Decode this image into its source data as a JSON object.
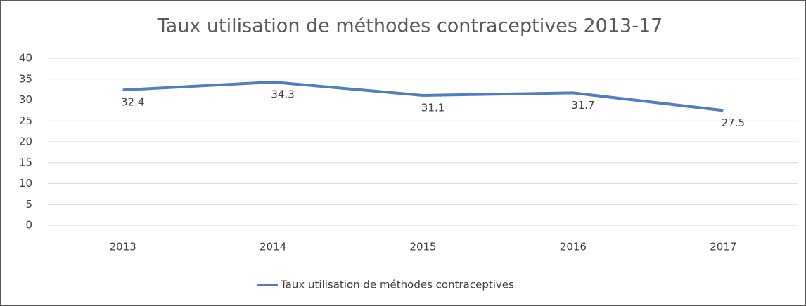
{
  "chart_data": {
    "type": "line",
    "title": "Taux utilisation de méthodes contraceptives 2013-17",
    "categories": [
      "2013",
      "2014",
      "2015",
      "2016",
      "2017"
    ],
    "series": [
      {
        "name": "Taux utilisation de méthodes contraceptives",
        "color": "#4f7fc2",
        "values": [
          32.4,
          34.3,
          31.1,
          31.7,
          27.5
        ]
      }
    ],
    "ylim": [
      0,
      40
    ],
    "yticks": [
      0,
      5,
      10,
      15,
      20,
      25,
      30,
      35,
      40
    ],
    "grid": true,
    "legend": "bottom"
  }
}
